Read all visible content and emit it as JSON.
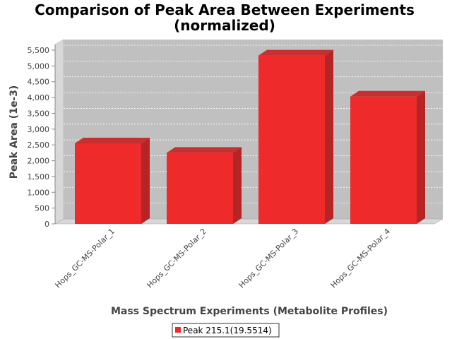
{
  "chart_data": {
    "type": "bar",
    "title": "Comparison of Peak Area Between Experiments",
    "subtitle": "(normalized)",
    "xlabel": "Mass Spectrum Experiments (Metabolite Profiles)",
    "ylabel": "Peak Area (1e-3)",
    "categories": [
      "Hops_GC-MS-Polar_1",
      "Hops_GC-MS-Polar_2",
      "Hops_GC-MS-Polar_3",
      "Hops_GC-MS-Polar_4"
    ],
    "series": [
      {
        "name": "Peak 215.1(19.5514)",
        "values": [
          2550,
          2250,
          5330,
          4030
        ],
        "color": "#ee2a2a"
      }
    ],
    "ylim": [
      0,
      5500
    ],
    "yticks": [
      0,
      500,
      1000,
      1500,
      2000,
      2500,
      3000,
      3500,
      4000,
      4500,
      5000,
      5500
    ],
    "ytick_labels": [
      "0",
      "500",
      "1,000",
      "1,500",
      "2,000",
      "2,500",
      "3,000",
      "3,500",
      "4,000",
      "4,500",
      "5,000",
      "5,500"
    ],
    "grid": true,
    "style": "3d",
    "legend_position": "bottom",
    "colors": {
      "plot_background": "#c0c0c0",
      "plot_wall_side": "#d8d8d8",
      "plot_floor": "#d8d8d8",
      "bar_front": "#ee2a2a",
      "bar_side": "#b52525",
      "bar_top": "#c63030"
    }
  }
}
